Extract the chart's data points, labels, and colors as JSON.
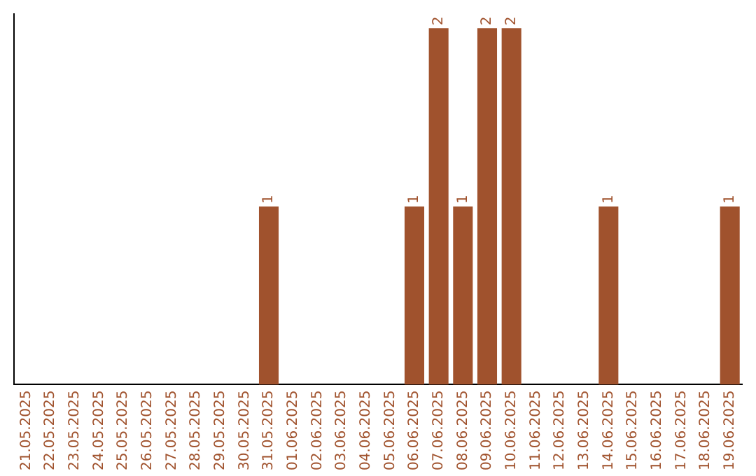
{
  "chart_data": {
    "type": "bar",
    "categories": [
      "21.05.2025",
      "22.05.2025",
      "23.05.2025",
      "24.05.2025",
      "25.05.2025",
      "26.05.2025",
      "27.05.2025",
      "28.05.2025",
      "29.05.2025",
      "30.05.2025",
      "31.05.2025",
      "01.06.2025",
      "02.06.2025",
      "03.06.2025",
      "04.06.2025",
      "05.06.2025",
      "06.06.2025",
      "07.06.2025",
      "08.06.2025",
      "09.06.2025",
      "10.06.2025",
      "11.06.2025",
      "12.06.2025",
      "13.06.2025",
      "14.06.2025",
      "15.06.2025",
      "16.06.2025",
      "17.06.2025",
      "18.06.2025",
      "19.06.2025"
    ],
    "values": [
      0,
      0,
      0,
      0,
      0,
      0,
      0,
      0,
      0,
      0,
      1,
      0,
      0,
      0,
      0,
      0,
      1,
      2,
      1,
      2,
      2,
      0,
      0,
      0,
      1,
      0,
      0,
      0,
      0,
      1
    ],
    "value_labels": [
      null,
      null,
      null,
      null,
      null,
      null,
      null,
      null,
      null,
      null,
      "1",
      null,
      null,
      null,
      null,
      null,
      "1",
      "2",
      "1",
      "2",
      "2",
      null,
      null,
      null,
      "1",
      null,
      null,
      null,
      null,
      "1"
    ],
    "color": "#a0522d",
    "tick_labels": "x",
    "grid": false,
    "legend": false
  }
}
